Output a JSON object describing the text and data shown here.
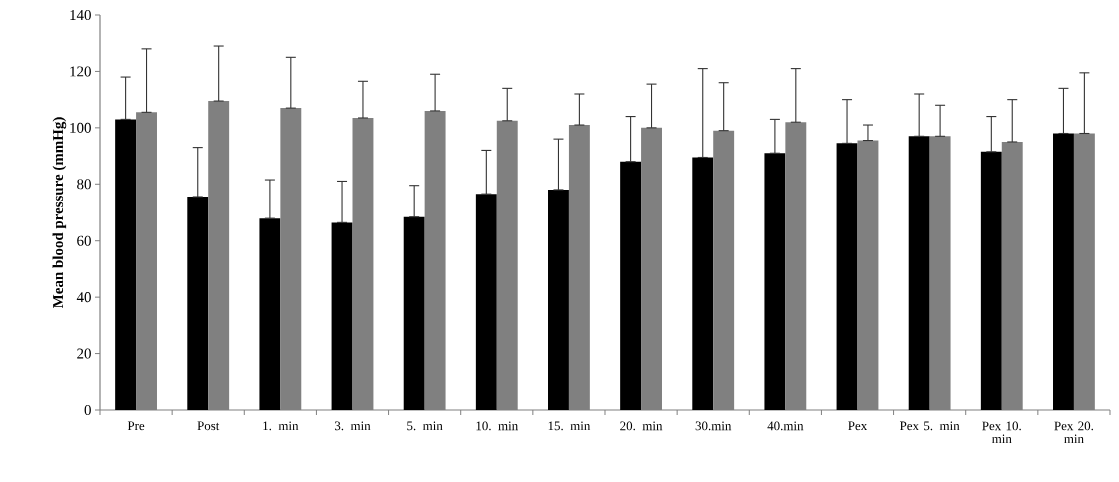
{
  "chart_data": {
    "type": "bar",
    "ylabel": "Mean blood pressure (mmHg)",
    "categories": [
      "Pre",
      "Post",
      "1. min",
      "3. min",
      "5. min",
      "10. min",
      "15. min",
      "20. min",
      "30.min",
      "40.min",
      "Pex",
      "Pex 5. min",
      "Pex 10. min",
      "Pex 20. min"
    ],
    "series": [
      {
        "color": "#000000",
        "values": [
          103,
          75.5,
          68,
          66.5,
          68.5,
          76.5,
          78,
          88,
          89.5,
          91,
          94.5,
          97,
          91.5,
          98
        ],
        "errors": [
          [
            103,
            118
          ],
          [
            75.5,
            93
          ],
          [
            68,
            81.5
          ],
          [
            66.5,
            81
          ],
          [
            68.5,
            79.5
          ],
          [
            76.5,
            92
          ],
          [
            78,
            96
          ],
          [
            88,
            104
          ],
          [
            89.5,
            121
          ],
          [
            91,
            103
          ],
          [
            94.5,
            110
          ],
          [
            97,
            112
          ],
          [
            91.5,
            104
          ],
          [
            98,
            114
          ]
        ]
      },
      {
        "color": "#808080",
        "values": [
          105.5,
          109.5,
          107,
          103.5,
          106,
          102.5,
          101,
          100,
          99,
          102,
          95.5,
          97,
          95,
          98
        ],
        "errors": [
          [
            105.5,
            128
          ],
          [
            109.5,
            129
          ],
          [
            107,
            125
          ],
          [
            103.5,
            116.5
          ],
          [
            106,
            119
          ],
          [
            102.5,
            114
          ],
          [
            101,
            112
          ],
          [
            100,
            115.5
          ],
          [
            99,
            116
          ],
          [
            102,
            121
          ],
          [
            95.5,
            101
          ],
          [
            97,
            108
          ],
          [
            95,
            110
          ],
          [
            98,
            119.5
          ]
        ]
      }
    ],
    "ylim": [
      0,
      140
    ],
    "yticks": [
      0,
      20,
      40,
      60,
      80,
      100,
      120,
      140
    ]
  }
}
